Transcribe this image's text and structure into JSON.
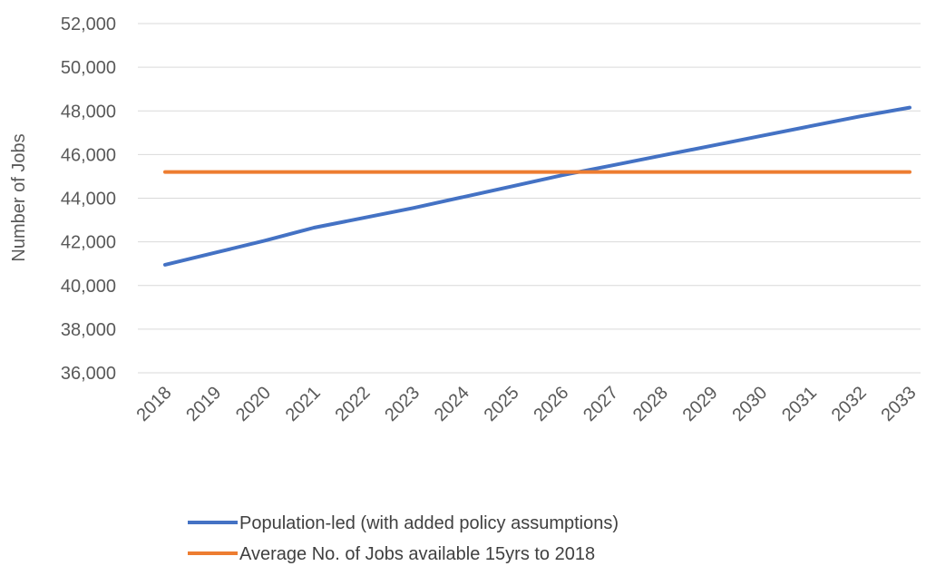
{
  "chart_data": {
    "type": "line",
    "title": "",
    "xlabel": "",
    "ylabel": "Number of Jobs",
    "categories": [
      "2018",
      "2019",
      "2020",
      "2021",
      "2022",
      "2023",
      "2024",
      "2025",
      "2026",
      "2027",
      "2028",
      "2029",
      "2030",
      "2031",
      "2032",
      "2033"
    ],
    "y_ticks": [
      "36,000",
      "38,000",
      "40,000",
      "42,000",
      "44,000",
      "46,000",
      "48,000",
      "50,000",
      "52,000"
    ],
    "ylim": [
      36000,
      52000
    ],
    "grid": true,
    "legend_position": "bottom",
    "series": [
      {
        "name": "Population-led (with added policy assumptions)",
        "color": "#4472C4",
        "values": [
          40950,
          41500,
          42050,
          42650,
          43100,
          43550,
          44050,
          44550,
          45050,
          45500,
          45950,
          46400,
          46850,
          47300,
          47750,
          48150
        ]
      },
      {
        "name": "Average No. of Jobs available 15yrs to 2018",
        "color": "#ED7D31",
        "values": [
          45200,
          45200,
          45200,
          45200,
          45200,
          45200,
          45200,
          45200,
          45200,
          45200,
          45200,
          45200,
          45200,
          45200,
          45200,
          45200
        ]
      }
    ],
    "gridline_color": "#d9d9d9"
  }
}
